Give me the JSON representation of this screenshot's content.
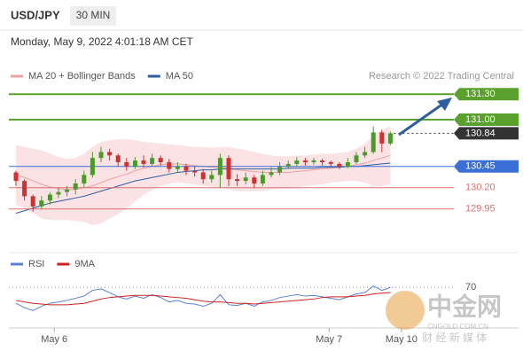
{
  "header": {
    "symbol": "USD/JPY",
    "interval": "30 MIN",
    "timestamp": "Monday, May 9, 2022 4:01:18 AM CET"
  },
  "chart_data": {
    "type": "candlestick",
    "legend": [
      {
        "name": "MA 20 + Bollinger Bands",
        "color": "#f0a0a0"
      },
      {
        "name": "MA 50",
        "color": "#2e5e9e"
      }
    ],
    "credit": "Research © 2022 Trading Central",
    "ylim": [
      129.5,
      131.5
    ],
    "up_color": "#4a9a2a",
    "down_color": "#d03030",
    "candles": [
      [
        130.38,
        130.4,
        130.22,
        130.28
      ],
      [
        130.28,
        130.3,
        130.05,
        130.1
      ],
      [
        130.1,
        130.12,
        129.92,
        129.98
      ],
      [
        129.98,
        130.1,
        129.95,
        130.05
      ],
      [
        130.05,
        130.15,
        130.0,
        130.12
      ],
      [
        130.12,
        130.2,
        130.08,
        130.15
      ],
      [
        130.15,
        130.22,
        130.1,
        130.18
      ],
      [
        130.18,
        130.3,
        130.12,
        130.25
      ],
      [
        130.25,
        130.4,
        130.2,
        130.35
      ],
      [
        130.35,
        130.62,
        130.32,
        130.55
      ],
      [
        130.55,
        130.68,
        130.5,
        130.62
      ],
      [
        130.62,
        130.66,
        130.52,
        130.58
      ],
      [
        130.58,
        130.6,
        130.45,
        130.5
      ],
      [
        130.5,
        130.55,
        130.4,
        130.45
      ],
      [
        130.45,
        130.56,
        130.42,
        130.52
      ],
      [
        130.52,
        130.58,
        130.44,
        130.48
      ],
      [
        130.48,
        130.6,
        130.45,
        130.55
      ],
      [
        130.55,
        130.58,
        130.46,
        130.5
      ],
      [
        130.5,
        130.54,
        130.38,
        130.42
      ],
      [
        130.42,
        130.5,
        130.38,
        130.45
      ],
      [
        130.45,
        130.48,
        130.35,
        130.4
      ],
      [
        130.4,
        130.45,
        130.33,
        130.38
      ],
      [
        130.38,
        130.42,
        130.25,
        130.3
      ],
      [
        130.3,
        130.4,
        130.26,
        130.35
      ],
      [
        130.35,
        130.6,
        130.2,
        130.55
      ],
      [
        130.55,
        130.58,
        130.22,
        130.3
      ],
      [
        130.3,
        130.36,
        130.22,
        130.28
      ],
      [
        130.28,
        130.38,
        130.24,
        130.32
      ],
      [
        130.32,
        130.35,
        130.2,
        130.25
      ],
      [
        130.25,
        130.4,
        130.22,
        130.35
      ],
      [
        130.35,
        130.44,
        130.32,
        130.38
      ],
      [
        130.38,
        130.5,
        130.35,
        130.45
      ],
      [
        130.45,
        130.52,
        130.42,
        130.48
      ],
      [
        130.48,
        130.56,
        130.45,
        130.52
      ],
      [
        130.52,
        130.55,
        130.46,
        130.5
      ],
      [
        130.5,
        130.55,
        130.47,
        130.52
      ],
      [
        130.52,
        130.54,
        130.46,
        130.5
      ],
      [
        130.5,
        130.52,
        130.44,
        130.48
      ],
      [
        130.48,
        130.5,
        130.42,
        130.45
      ],
      [
        130.45,
        130.55,
        130.43,
        130.5
      ],
      [
        130.5,
        130.62,
        130.48,
        130.58
      ],
      [
        130.58,
        130.68,
        130.55,
        130.62
      ],
      [
        130.62,
        130.92,
        130.6,
        130.85
      ],
      [
        130.85,
        130.88,
        130.62,
        130.72
      ],
      [
        130.72,
        130.86,
        130.7,
        130.84
      ]
    ],
    "ma20": [
      130.35,
      130.32,
      130.28,
      130.24,
      130.21,
      130.19,
      130.18,
      130.18,
      130.2,
      130.22,
      130.26,
      130.3,
      130.33,
      130.36,
      130.4,
      130.43,
      130.45,
      130.47,
      130.48,
      130.48,
      130.47,
      130.46,
      130.45,
      130.44,
      130.44,
      130.43,
      130.41,
      130.4,
      130.39,
      130.38,
      130.38,
      130.38,
      130.38,
      130.39,
      130.4,
      130.41,
      130.42,
      130.43,
      130.44,
      130.45,
      130.47,
      130.49,
      130.52,
      130.55,
      130.58
    ],
    "bb_upper": [
      130.7,
      130.68,
      130.66,
      130.64,
      130.6,
      130.56,
      130.54,
      130.55,
      130.6,
      130.68,
      130.74,
      130.76,
      130.77,
      130.77,
      130.76,
      130.74,
      130.73,
      130.72,
      130.71,
      130.7,
      130.69,
      130.68,
      130.68,
      130.67,
      130.68,
      130.68,
      130.66,
      130.64,
      130.62,
      130.6,
      130.58,
      130.57,
      130.57,
      130.58,
      130.58,
      130.59,
      130.6,
      130.6,
      130.61,
      130.62,
      130.66,
      130.72,
      130.82,
      130.88,
      130.92
    ],
    "bb_lower": [
      130.0,
      129.96,
      129.9,
      129.84,
      129.82,
      129.82,
      129.82,
      129.81,
      129.8,
      129.76,
      129.78,
      129.84,
      129.89,
      129.95,
      130.04,
      130.12,
      130.17,
      130.22,
      130.25,
      130.26,
      130.25,
      130.24,
      130.22,
      130.21,
      130.2,
      130.18,
      130.16,
      130.16,
      130.16,
      130.16,
      130.18,
      130.19,
      130.19,
      130.2,
      130.22,
      130.23,
      130.24,
      130.26,
      130.27,
      130.28,
      130.28,
      130.26,
      130.22,
      130.22,
      130.24
    ],
    "ma50": [
      129.9,
      129.93,
      129.96,
      129.99,
      130.02,
      130.04,
      130.06,
      130.08,
      130.1,
      130.13,
      130.16,
      130.19,
      130.22,
      130.25,
      130.28,
      130.3,
      130.32,
      130.34,
      130.36,
      130.38,
      130.39,
      130.4,
      130.41,
      130.41,
      130.42,
      130.42,
      130.42,
      130.42,
      130.42,
      130.42,
      130.42,
      130.42,
      130.43,
      130.43,
      130.43,
      130.43,
      130.44,
      130.44,
      130.44,
      130.45,
      130.45,
      130.46,
      130.47,
      130.48,
      130.49
    ],
    "levels": [
      {
        "value": 131.3,
        "label": "131.30",
        "color": "#5aa02c",
        "style": "box"
      },
      {
        "value": 131.0,
        "label": "131.00",
        "color": "#5aa02c",
        "style": "box"
      },
      {
        "value": 130.84,
        "label": "130.84",
        "color": "#333333",
        "style": "current"
      },
      {
        "value": 130.45,
        "label": "130.45",
        "color": "#3a6fd8",
        "style": "box"
      },
      {
        "value": 130.2,
        "label": "130.20",
        "color": "#e07070",
        "style": "text"
      },
      {
        "value": 129.95,
        "label": "129.95",
        "color": "#e07070",
        "style": "text"
      }
    ],
    "xticks": [
      {
        "value": 4.5,
        "label": "May 6"
      },
      {
        "value": 36.8,
        "label": "May 7"
      },
      {
        "value": 45.3,
        "label": "May 10"
      }
    ],
    "rsi": {
      "legend": [
        {
          "name": "RSI",
          "color": "#5b7fd6"
        },
        {
          "name": "9MA",
          "color": "#cc2222"
        }
      ],
      "ylim": [
        20,
        90
      ],
      "yticks": [
        70
      ],
      "values": [
        48,
        42,
        38,
        44,
        48,
        50,
        52,
        55,
        58,
        66,
        68,
        63,
        57,
        54,
        58,
        55,
        60,
        56,
        50,
        52,
        48,
        47,
        44,
        48,
        60,
        46,
        45,
        48,
        44,
        50,
        52,
        56,
        58,
        60,
        58,
        59,
        57,
        55,
        53,
        57,
        61,
        63,
        72,
        66,
        70
      ],
      "ma": [
        52,
        50,
        48,
        47,
        46,
        46,
        46,
        47,
        48,
        51,
        54,
        56,
        57,
        58,
        59,
        59,
        59,
        58,
        57,
        56,
        55,
        53,
        51,
        50,
        50,
        49,
        48,
        48,
        47,
        48,
        49,
        50,
        51,
        52,
        53,
        54,
        56,
        57,
        57,
        57,
        58,
        59,
        61,
        62,
        63
      ]
    }
  },
  "watermark": {
    "name": "中金网",
    "site": "CNGOLD.COM.CN",
    "tagline": "财 经 新 媒 体"
  }
}
